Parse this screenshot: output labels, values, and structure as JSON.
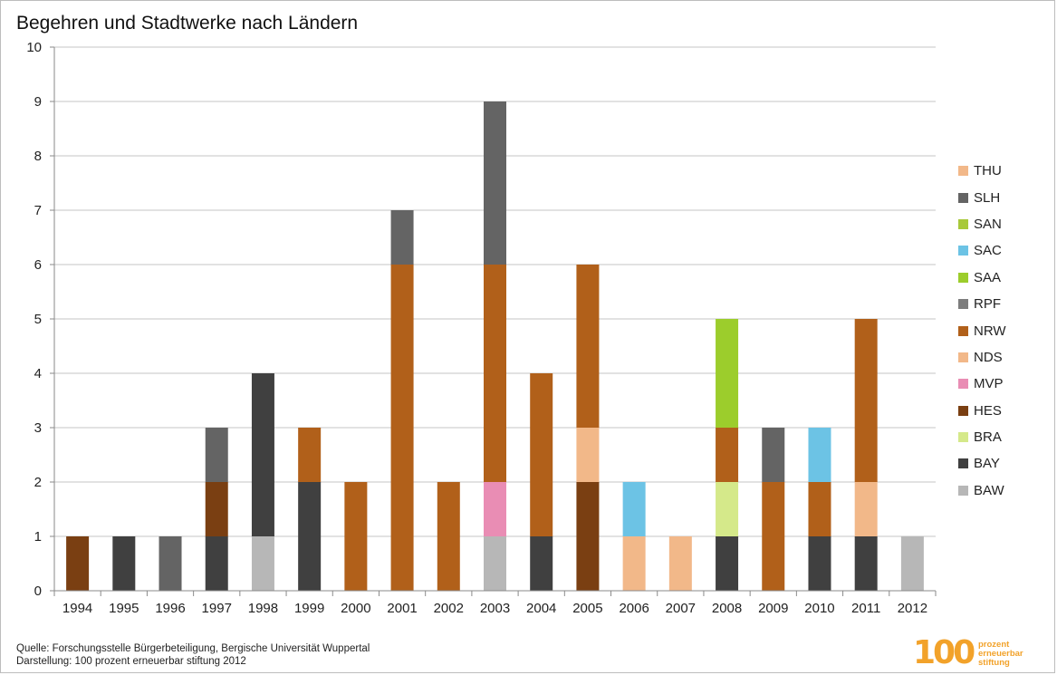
{
  "chart_data": {
    "type": "bar",
    "stacked": true,
    "title": "Begehren und Stadtwerke nach Ländern",
    "xlabel": "",
    "ylabel": "",
    "ylim": [
      0,
      10
    ],
    "yticks": [
      "0",
      "1",
      "2",
      "3",
      "4",
      "5",
      "6",
      "7",
      "8",
      "9",
      "10"
    ],
    "grid": true,
    "legend_position": "right",
    "categories": [
      "1994",
      "1995",
      "1996",
      "1997",
      "1998",
      "1999",
      "2000",
      "2001",
      "2002",
      "2003",
      "2004",
      "2005",
      "2006",
      "2007",
      "2008",
      "2009",
      "2010",
      "2011",
      "2012"
    ],
    "series": [
      {
        "name": "BAW",
        "color": "#b7b7b7",
        "values": [
          0,
          0,
          0,
          0,
          1,
          0,
          0,
          0,
          0,
          1,
          0,
          0,
          0,
          0,
          0,
          0,
          0,
          0,
          1
        ]
      },
      {
        "name": "BAY",
        "color": "#404040",
        "values": [
          0,
          1,
          0,
          1,
          3,
          2,
          0,
          0,
          0,
          0,
          1,
          0,
          0,
          0,
          1,
          0,
          1,
          1,
          0
        ]
      },
      {
        "name": "BRA",
        "color": "#d5e98a",
        "values": [
          0,
          0,
          0,
          0,
          0,
          0,
          0,
          0,
          0,
          0,
          0,
          0,
          0,
          0,
          1,
          0,
          0,
          0,
          0
        ]
      },
      {
        "name": "HES",
        "color": "#7a3f12",
        "values": [
          1,
          0,
          0,
          1,
          0,
          0,
          0,
          0,
          0,
          0,
          0,
          2,
          0,
          0,
          0,
          0,
          0,
          0,
          0
        ]
      },
      {
        "name": "MVP",
        "color": "#e98db4",
        "values": [
          0,
          0,
          0,
          0,
          0,
          0,
          0,
          0,
          0,
          1,
          0,
          0,
          0,
          0,
          0,
          0,
          0,
          0,
          0
        ]
      },
      {
        "name": "NDS",
        "color": "#f2b889",
        "values": [
          0,
          0,
          0,
          0,
          0,
          0,
          0,
          0,
          0,
          0,
          0,
          1,
          1,
          1,
          0,
          0,
          0,
          1,
          0
        ]
      },
      {
        "name": "NRW",
        "color": "#b1601a",
        "values": [
          0,
          0,
          0,
          0,
          0,
          1,
          2,
          6,
          2,
          4,
          3,
          3,
          0,
          0,
          1,
          2,
          1,
          3,
          0
        ]
      },
      {
        "name": "RPF",
        "color": "#7d7d7d",
        "values": [
          0,
          0,
          0,
          0,
          0,
          0,
          0,
          0,
          0,
          0,
          0,
          0,
          0,
          0,
          0,
          0,
          0,
          0,
          0
        ]
      },
      {
        "name": "SAA",
        "color": "#9ccd2c",
        "values": [
          0,
          0,
          0,
          0,
          0,
          0,
          0,
          0,
          0,
          0,
          0,
          0,
          0,
          0,
          2,
          0,
          0,
          0,
          0
        ]
      },
      {
        "name": "SAC",
        "color": "#6cc3e5",
        "values": [
          0,
          0,
          0,
          0,
          0,
          0,
          0,
          0,
          0,
          0,
          0,
          0,
          1,
          0,
          0,
          0,
          1,
          0,
          0
        ]
      },
      {
        "name": "SAN",
        "color": "#a8c93a",
        "values": [
          0,
          0,
          0,
          0,
          0,
          0,
          0,
          0,
          0,
          0,
          0,
          0,
          0,
          0,
          0,
          0,
          0,
          0,
          0
        ]
      },
      {
        "name": "SLH",
        "color": "#646464",
        "values": [
          0,
          0,
          1,
          1,
          0,
          0,
          0,
          1,
          0,
          3,
          0,
          0,
          0,
          0,
          0,
          1,
          0,
          0,
          0
        ]
      },
      {
        "name": "THU",
        "color": "#f2b889",
        "values": [
          0,
          0,
          0,
          0,
          0,
          0,
          0,
          0,
          0,
          0,
          0,
          0,
          0,
          0,
          0,
          0,
          0,
          0,
          0
        ]
      }
    ]
  },
  "legend_order": [
    "THU",
    "SLH",
    "SAN",
    "SAC",
    "SAA",
    "RPF",
    "NRW",
    "NDS",
    "MVP",
    "HES",
    "BRA",
    "BAY",
    "BAW"
  ],
  "source": {
    "line1": "Quelle:  Forschungsstelle  Bürgerbeteiligung,  Bergische Universität  Wuppertal",
    "line2": "Darstellung:  100 prozent erneuerbar stiftung 2012"
  },
  "logo": {
    "number": "100",
    "line1": "prozent",
    "line2": "erneuerbar",
    "line3": "stiftung",
    "color": "#f2a22a"
  }
}
